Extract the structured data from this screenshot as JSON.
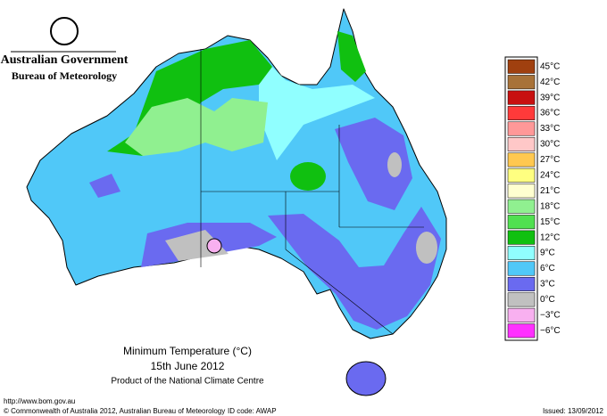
{
  "header": {
    "government": "Australian Government",
    "bureau": "Bureau of Meteorology"
  },
  "legend": {
    "items": [
      {
        "label": "45°C",
        "color": "#a0400f"
      },
      {
        "label": "42°C",
        "color": "#a87238"
      },
      {
        "label": "39°C",
        "color": "#c81010"
      },
      {
        "label": "36°C",
        "color": "#ff3a3a"
      },
      {
        "label": "33°C",
        "color": "#ff9898"
      },
      {
        "label": "30°C",
        "color": "#ffc8c8"
      },
      {
        "label": "27°C",
        "color": "#ffc850"
      },
      {
        "label": "24°C",
        "color": "#ffff80"
      },
      {
        "label": "21°C",
        "color": "#ffffd0"
      },
      {
        "label": "18°C",
        "color": "#90f090"
      },
      {
        "label": "15°C",
        "color": "#50e050"
      },
      {
        "label": "12°C",
        "color": "#10c010"
      },
      {
        "label": "9°C",
        "color": "#90ffff"
      },
      {
        "label": "6°C",
        "color": "#50c8f8"
      },
      {
        "label": "3°C",
        "color": "#6a6af0"
      },
      {
        "label": "0°C",
        "color": "#c0c0c0"
      },
      {
        "label": "−3°C",
        "color": "#f8b0f0"
      },
      {
        "label": "−6°C",
        "color": "#ff30ff"
      }
    ]
  },
  "caption": {
    "title": "Minimum Temperature (°C)",
    "date": "15th June 2012",
    "credit": "Product of the National Climate Centre"
  },
  "footer": {
    "url": "http://www.bom.gov.au",
    "copyright": "© Commonwealth of Australia 2012, Australian Bureau of Meteorology",
    "id": "ID code: AWAP",
    "issued": "Issued: 13/09/2012"
  }
}
